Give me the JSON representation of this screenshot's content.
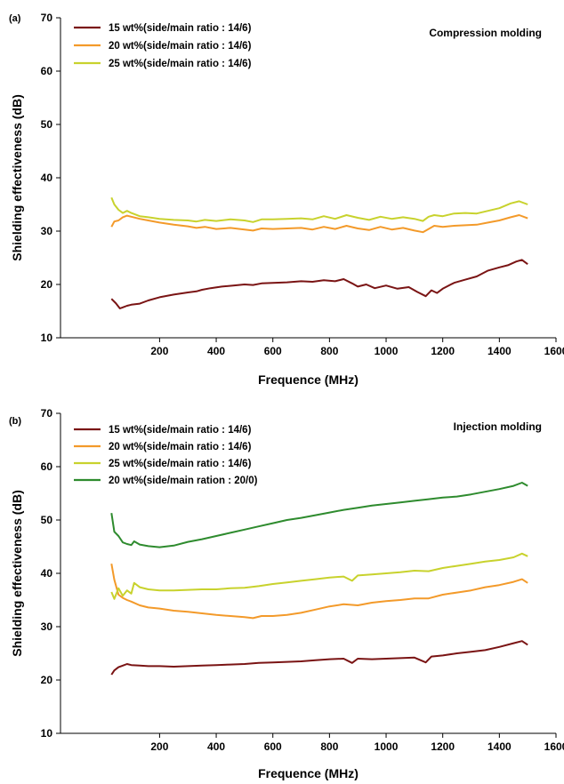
{
  "chart_data": [
    {
      "type": "line",
      "panel_label": "(a)",
      "annotation": "Compression molding",
      "xlabel": "Frequence (MHz)",
      "ylabel": "Shielding effectiveness (dB)",
      "xlim": [
        -150,
        1600
      ],
      "ylim": [
        10,
        70
      ],
      "xticks": [
        200,
        400,
        600,
        800,
        1000,
        1200,
        1400,
        1600
      ],
      "yticks": [
        10,
        20,
        30,
        40,
        50,
        60,
        70
      ],
      "grid": false,
      "legend_position": "top-left",
      "series": [
        {
          "name": "15 wt%(side/main ratio : 14/6)",
          "color": "#7a1414",
          "x": [
            30,
            45,
            60,
            70,
            85,
            100,
            130,
            160,
            200,
            250,
            300,
            330,
            350,
            380,
            420,
            460,
            500,
            530,
            560,
            600,
            650,
            700,
            740,
            780,
            820,
            850,
            880,
            900,
            930,
            960,
            1000,
            1040,
            1080,
            1110,
            1140,
            1160,
            1180,
            1200,
            1240,
            1280,
            1320,
            1360,
            1400,
            1430,
            1460,
            1480,
            1500
          ],
          "y": [
            17.3,
            16.5,
            15.5,
            15.7,
            16.0,
            16.2,
            16.4,
            17.0,
            17.6,
            18.1,
            18.5,
            18.7,
            19.0,
            19.3,
            19.6,
            19.8,
            20.0,
            19.9,
            20.2,
            20.3,
            20.4,
            20.6,
            20.5,
            20.8,
            20.6,
            21.0,
            20.2,
            19.6,
            20.0,
            19.3,
            19.8,
            19.2,
            19.5,
            18.6,
            17.8,
            18.9,
            18.4,
            19.2,
            20.3,
            20.9,
            21.5,
            22.6,
            23.2,
            23.6,
            24.3,
            24.6,
            23.8
          ]
        },
        {
          "name": "20 wt%(side/main ratio : 14/6)",
          "color": "#f39a2a",
          "x": [
            30,
            40,
            55,
            70,
            85,
            100,
            130,
            160,
            200,
            250,
            300,
            330,
            360,
            400,
            450,
            500,
            530,
            560,
            600,
            650,
            700,
            740,
            780,
            820,
            860,
            900,
            940,
            980,
            1020,
            1060,
            1100,
            1130,
            1150,
            1170,
            1200,
            1240,
            1280,
            1320,
            1360,
            1400,
            1440,
            1470,
            1500
          ],
          "y": [
            30.8,
            31.8,
            32.0,
            32.6,
            32.9,
            32.7,
            32.3,
            32.0,
            31.6,
            31.2,
            30.9,
            30.6,
            30.8,
            30.4,
            30.6,
            30.3,
            30.1,
            30.5,
            30.4,
            30.5,
            30.6,
            30.3,
            30.8,
            30.4,
            31.0,
            30.5,
            30.2,
            30.8,
            30.3,
            30.6,
            30.1,
            29.8,
            30.4,
            31.0,
            30.8,
            31.0,
            31.1,
            31.2,
            31.6,
            32.0,
            32.6,
            33.0,
            32.4
          ]
        },
        {
          "name": "25 wt%(side/main ratio : 14/6)",
          "color": "#c8d22d",
          "x": [
            30,
            40,
            55,
            70,
            85,
            100,
            130,
            160,
            200,
            250,
            300,
            330,
            360,
            400,
            450,
            500,
            530,
            560,
            600,
            650,
            700,
            740,
            780,
            820,
            860,
            900,
            940,
            980,
            1020,
            1060,
            1100,
            1130,
            1150,
            1170,
            1200,
            1240,
            1280,
            1320,
            1360,
            1400,
            1440,
            1470,
            1500
          ],
          "y": [
            36.3,
            35.0,
            34.0,
            33.4,
            33.8,
            33.4,
            32.8,
            32.6,
            32.3,
            32.1,
            32.0,
            31.8,
            32.1,
            31.9,
            32.2,
            32.0,
            31.7,
            32.2,
            32.2,
            32.3,
            32.4,
            32.2,
            32.8,
            32.3,
            33.0,
            32.5,
            32.1,
            32.7,
            32.3,
            32.6,
            32.3,
            31.9,
            32.7,
            33.0,
            32.8,
            33.3,
            33.4,
            33.3,
            33.8,
            34.3,
            35.2,
            35.6,
            35.0
          ]
        }
      ]
    },
    {
      "type": "line",
      "panel_label": "(b)",
      "annotation": "Injection molding",
      "xlabel": "Frequence (MHz)",
      "ylabel": "Shielding effectiveness (dB)",
      "xlim": [
        -150,
        1600
      ],
      "ylim": [
        10,
        70
      ],
      "xticks": [
        200,
        400,
        600,
        800,
        1000,
        1200,
        1400,
        1600
      ],
      "yticks": [
        10,
        20,
        30,
        40,
        50,
        60,
        70
      ],
      "grid": false,
      "legend_position": "top-left",
      "series": [
        {
          "name": "15 wt%(side/main ratio : 14/6)",
          "color": "#7a1414",
          "x": [
            30,
            40,
            55,
            70,
            85,
            100,
            130,
            160,
            200,
            250,
            300,
            350,
            400,
            450,
            500,
            550,
            600,
            650,
            700,
            750,
            800,
            850,
            880,
            900,
            950,
            1000,
            1050,
            1100,
            1140,
            1160,
            1200,
            1250,
            1300,
            1350,
            1400,
            1450,
            1480,
            1500
          ],
          "y": [
            21.0,
            21.8,
            22.4,
            22.7,
            23.0,
            22.8,
            22.7,
            22.6,
            22.6,
            22.5,
            22.6,
            22.7,
            22.8,
            22.9,
            23.0,
            23.2,
            23.3,
            23.4,
            23.5,
            23.7,
            23.9,
            24.0,
            23.2,
            24.0,
            23.9,
            24.0,
            24.1,
            24.2,
            23.3,
            24.4,
            24.6,
            25.0,
            25.3,
            25.6,
            26.2,
            26.9,
            27.3,
            26.6
          ]
        },
        {
          "name": "20 wt%(side/main ratio : 14/6)",
          "color": "#f39a2a",
          "x": [
            30,
            40,
            55,
            70,
            85,
            100,
            130,
            160,
            200,
            250,
            300,
            350,
            400,
            450,
            500,
            530,
            560,
            600,
            650,
            700,
            750,
            800,
            850,
            900,
            950,
            1000,
            1050,
            1100,
            1150,
            1200,
            1250,
            1300,
            1350,
            1400,
            1450,
            1480,
            1500
          ],
          "y": [
            41.8,
            38.8,
            36.0,
            35.4,
            35.0,
            34.7,
            34.0,
            33.6,
            33.4,
            33.0,
            32.8,
            32.5,
            32.2,
            32.0,
            31.8,
            31.6,
            32.0,
            32.0,
            32.2,
            32.6,
            33.2,
            33.8,
            34.2,
            34.0,
            34.5,
            34.8,
            35.0,
            35.3,
            35.3,
            36.0,
            36.4,
            36.8,
            37.4,
            37.8,
            38.4,
            38.9,
            38.2
          ]
        },
        {
          "name": "25 wt%(side/main ratio : 14/6)",
          "color": "#c8d22d",
          "x": [
            30,
            40,
            55,
            70,
            85,
            100,
            110,
            130,
            160,
            200,
            250,
            300,
            350,
            400,
            450,
            500,
            550,
            600,
            650,
            700,
            750,
            800,
            850,
            880,
            900,
            950,
            1000,
            1050,
            1100,
            1150,
            1200,
            1250,
            1300,
            1350,
            1400,
            1450,
            1480,
            1500
          ],
          "y": [
            36.5,
            35.2,
            37.2,
            35.8,
            36.8,
            36.2,
            38.2,
            37.4,
            37.0,
            36.8,
            36.8,
            36.9,
            37.0,
            37.0,
            37.2,
            37.3,
            37.6,
            38.0,
            38.3,
            38.6,
            38.9,
            39.2,
            39.4,
            38.6,
            39.6,
            39.8,
            40.0,
            40.2,
            40.5,
            40.4,
            41.0,
            41.4,
            41.8,
            42.2,
            42.5,
            43.0,
            43.7,
            43.2
          ]
        },
        {
          "name": "20 wt%(side/main ration : 20/0)",
          "color": "#2e8b2e",
          "x": [
            30,
            40,
            55,
            70,
            85,
            100,
            110,
            130,
            160,
            200,
            250,
            300,
            350,
            400,
            450,
            500,
            550,
            600,
            650,
            700,
            750,
            800,
            850,
            900,
            950,
            1000,
            1050,
            1100,
            1150,
            1200,
            1250,
            1300,
            1350,
            1400,
            1450,
            1480,
            1500
          ],
          "y": [
            51.3,
            47.8,
            47.0,
            45.8,
            45.5,
            45.3,
            46.0,
            45.4,
            45.1,
            44.9,
            45.2,
            45.9,
            46.4,
            47.0,
            47.6,
            48.2,
            48.8,
            49.4,
            50.0,
            50.4,
            50.9,
            51.4,
            51.9,
            52.3,
            52.7,
            53.0,
            53.3,
            53.6,
            53.9,
            54.2,
            54.4,
            54.8,
            55.3,
            55.8,
            56.4,
            57.0,
            56.4
          ]
        }
      ]
    }
  ]
}
